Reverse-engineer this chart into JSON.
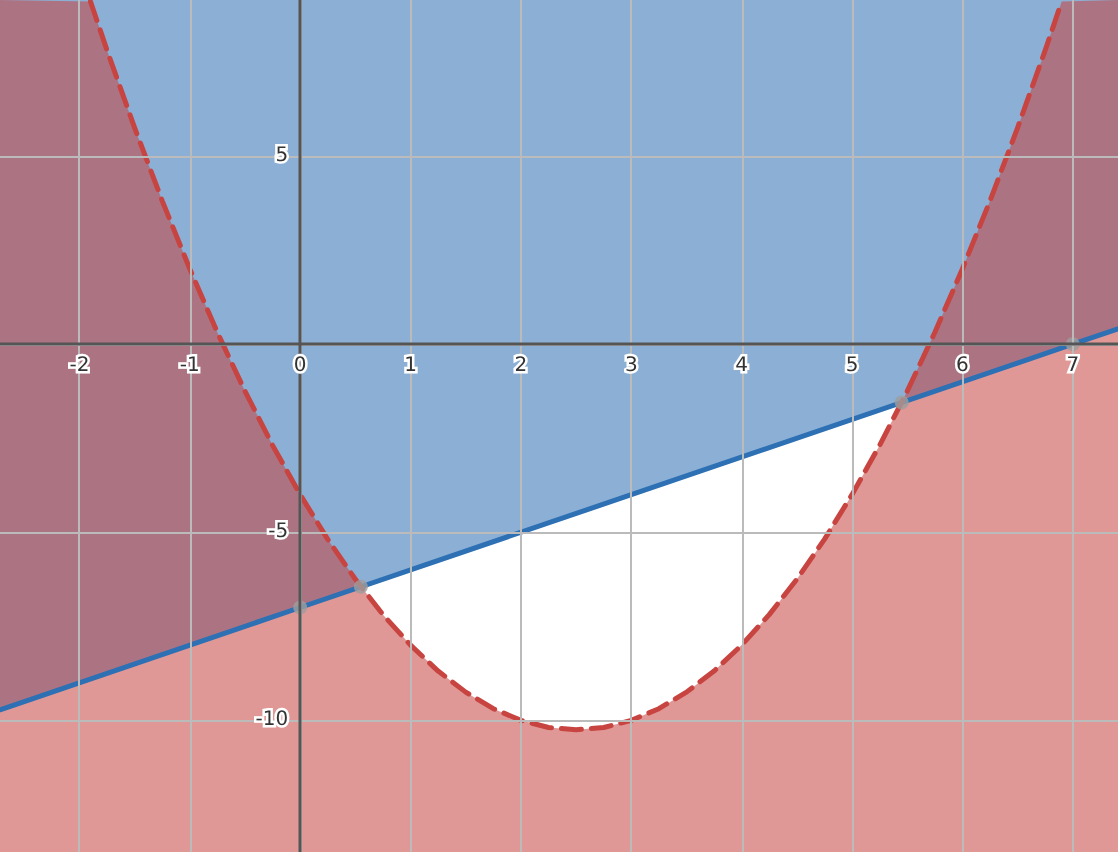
{
  "chart_data": {
    "type": "line",
    "xlim": [
      -2.72,
      7.41
    ],
    "ylim": [
      -13.5,
      9.15
    ],
    "xticks": [
      -2,
      -1,
      0,
      1,
      2,
      3,
      4,
      5,
      6,
      7
    ],
    "yticks": [
      -10,
      -5,
      {
        "value": 0,
        "label": null
      },
      5
    ],
    "grid": true,
    "series": [
      {
        "color": "#2d70b3",
        "line_style": "solid",
        "marker": "none",
        "x": [
          -2.72,
          0,
          7,
          7.41
        ],
        "values": [
          -9.72,
          -7,
          0,
          0.41
        ],
        "lower": [
          -9.72,
          -7,
          0,
          0.41
        ],
        "upper": [
          9.15,
          9.15,
          9.15,
          9.15
        ]
      },
      {
        "color": "#c74440",
        "line_style": "dashed",
        "marker": "none",
        "x": [
          -2.72,
          -1.9,
          -1.75,
          -1.5,
          -1.25,
          -1,
          -0.75,
          -0.5,
          -0.25,
          0,
          0.25,
          0.5,
          0.75,
          1,
          1.25,
          1.5,
          1.75,
          2,
          2.25,
          2.5,
          2.75,
          3,
          3.25,
          3.5,
          3.75,
          4,
          4.25,
          4.5,
          4.75,
          5,
          5.25,
          5.5,
          5.75,
          6,
          6.25,
          6.5,
          6.75,
          6.9,
          7.41
        ],
        "values": [
          null,
          9.11,
          7.81,
          5.75,
          3.81,
          2,
          0.31,
          -1.25,
          -2.69,
          -4,
          -5.19,
          -6.25,
          -7.19,
          -8,
          -8.69,
          -9.25,
          -9.69,
          -10,
          -10.19,
          -10.25,
          -10.19,
          -10,
          -9.69,
          -9.25,
          -8.69,
          -8,
          -7.19,
          -6.25,
          -5.19,
          -4,
          -2.69,
          -1.25,
          0.31,
          2,
          3.81,
          5.75,
          7.81,
          9.11,
          null
        ],
        "upper": [
          9.15,
          9.11,
          7.81,
          5.75,
          3.81,
          2,
          0.31,
          -1.25,
          -2.69,
          -4,
          -5.19,
          -6.25,
          -7.19,
          -8,
          -8.69,
          -9.25,
          -9.69,
          -10,
          -10.19,
          -10.25,
          -10.19,
          -10,
          -9.69,
          -9.25,
          -8.69,
          -8,
          -7.19,
          -6.25,
          -5.19,
          -4,
          -2.69,
          -1.25,
          0.31,
          2,
          3.81,
          5.75,
          7.81,
          9.11,
          9.15
        ],
        "lower": [
          -13.5,
          -13.5,
          -13.5,
          -13.5,
          -13.5,
          -13.5,
          -13.5,
          -13.5,
          -13.5,
          -13.5,
          -13.5,
          -13.5,
          -13.5,
          -13.5,
          -13.5,
          -13.5,
          -13.5,
          -13.5,
          -13.5,
          -13.5,
          -13.5,
          -13.5,
          -13.5,
          -13.5,
          -13.5,
          -13.5,
          -13.5,
          -13.5,
          -13.5,
          -13.5,
          -13.5,
          -13.5,
          -13.5,
          -13.5,
          -13.5,
          -13.5,
          -13.5,
          -13.5,
          -13.5
        ]
      },
      {
        "type": "scatter",
        "color": "#9e9e9e",
        "marker": "circle",
        "x": [
          0,
          0.55,
          5.45,
          7
        ],
        "values": [
          -7,
          -6.45,
          -1.55,
          0
        ]
      }
    ]
  }
}
